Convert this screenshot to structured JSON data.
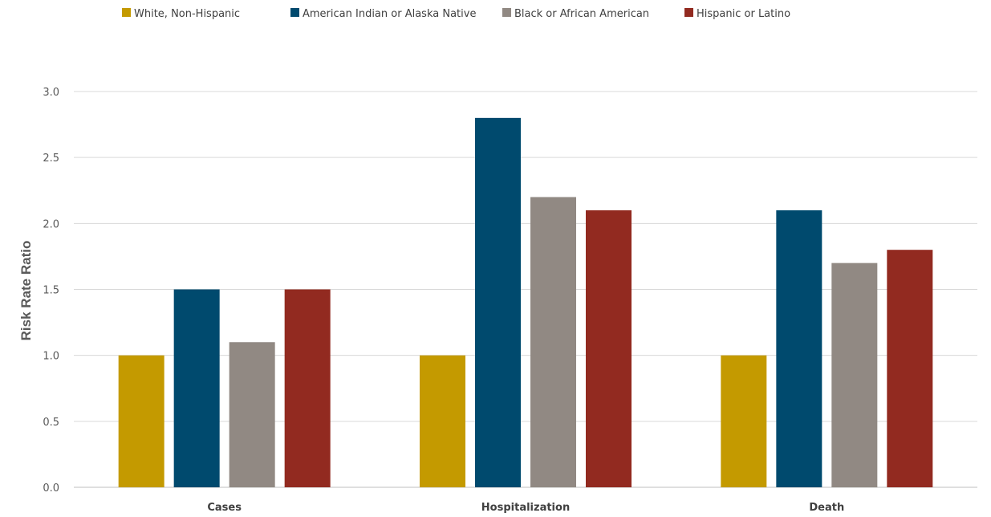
{
  "chart_data": {
    "type": "bar",
    "categories": [
      "Cases",
      "Hospitalization",
      "Death"
    ],
    "series": [
      {
        "name": "White, Non-Hispanic",
        "color": "#c49a00",
        "values": [
          1.0,
          1.0,
          1.0
        ]
      },
      {
        "name": "American Indian or Alaska Native",
        "color": "#004a6e",
        "values": [
          1.5,
          2.8,
          2.1
        ]
      },
      {
        "name": "Black or African American",
        "color": "#918983",
        "values": [
          1.1,
          2.2,
          1.7
        ]
      },
      {
        "name": "Hispanic or Latino",
        "color": "#922a20",
        "values": [
          1.5,
          2.1,
          1.8
        ]
      }
    ],
    "ylabel": "Risk Rate Ratio",
    "xlabel": "",
    "ylim": [
      0,
      3.0
    ],
    "yticks": [
      "0.0",
      "0.5",
      "1.0",
      "1.5",
      "2.0",
      "2.5",
      "3.0"
    ],
    "grid": true,
    "legend_position": "top"
  }
}
